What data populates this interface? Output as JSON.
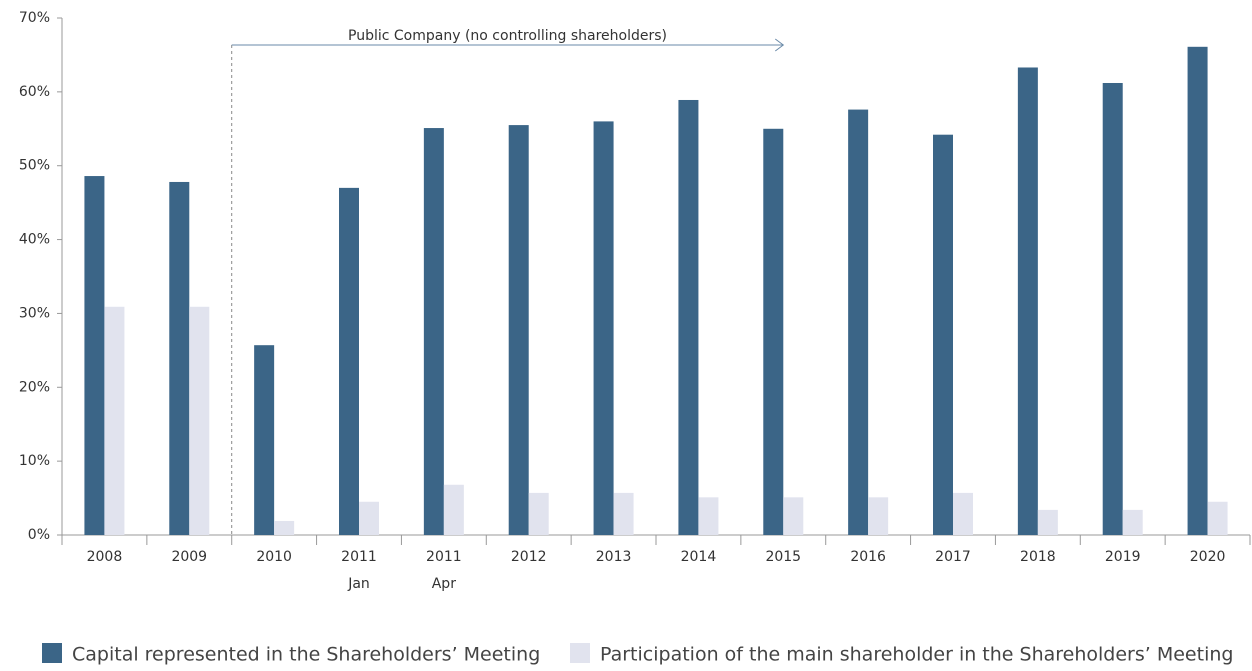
{
  "chart_data": {
    "type": "bar",
    "annotation": "Public Company (no controlling shareholders)",
    "categories": [
      [
        "2008"
      ],
      [
        "2009"
      ],
      [
        "2010"
      ],
      [
        "2011",
        "Jan"
      ],
      [
        "2011",
        "Apr"
      ],
      [
        "2012"
      ],
      [
        "2013"
      ],
      [
        "2014"
      ],
      [
        "2015"
      ],
      [
        "2016"
      ],
      [
        "2017"
      ],
      [
        "2018"
      ],
      [
        "2019"
      ],
      [
        "2020"
      ]
    ],
    "series": [
      {
        "name": "Capital represented in the Shareholders’ Meeting",
        "color": "#3b6587",
        "values": [
          48.6,
          47.8,
          25.7,
          47.0,
          55.1,
          55.5,
          56.0,
          58.9,
          55.0,
          57.6,
          54.2,
          63.3,
          61.2,
          66.1
        ]
      },
      {
        "name": "Participation of the main shareholder in the Shareholders’ Meeting",
        "color": "#e1e3ee",
        "values": [
          30.9,
          30.9,
          1.9,
          4.5,
          6.8,
          5.7,
          5.7,
          5.1,
          5.1,
          5.1,
          5.7,
          3.4,
          3.4,
          4.5
        ]
      }
    ],
    "ylim": [
      0,
      70
    ],
    "yticks": [
      {
        "value": 0,
        "label": "0%"
      },
      {
        "value": 10,
        "label": "10%"
      },
      {
        "value": 20,
        "label": "20%"
      },
      {
        "value": 30,
        "label": "30%"
      },
      {
        "value": 40,
        "label": "40%"
      },
      {
        "value": 50,
        "label": "50%"
      },
      {
        "value": 60,
        "label": "60%"
      },
      {
        "value": 70,
        "label": "70%"
      }
    ],
    "grid": false,
    "legend": "bottom"
  }
}
